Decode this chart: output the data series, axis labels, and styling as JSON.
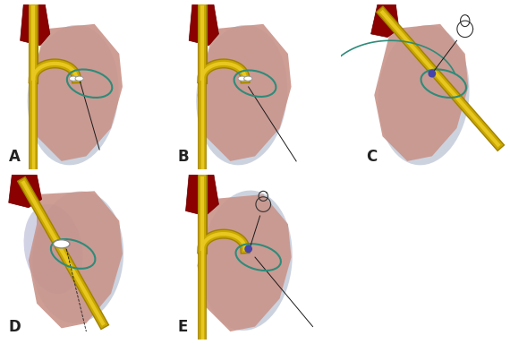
{
  "bg_color": "#ffffff",
  "heart_color": "#c9948a",
  "heart_dark_color": "#b07a72",
  "aorta_color": "#8b0000",
  "aorta_dark": "#6b0000",
  "catheter_outer": "#c8a800",
  "catheter_inner": "#e8c820",
  "catheter_dark": "#a08000",
  "wire_color": "#1a1a1a",
  "ellipse_color": "#2e8b7a",
  "device_color": "#e0e0e0",
  "device_dark": "#b0b0b0",
  "blue_dot_color": "#4444aa",
  "shadow_color": "#9ba8c0",
  "loop_color": "#2e8b7a",
  "labels": [
    "A",
    "B",
    "C",
    "D",
    "E"
  ],
  "label_fontsize": 12,
  "label_color": "#222222"
}
